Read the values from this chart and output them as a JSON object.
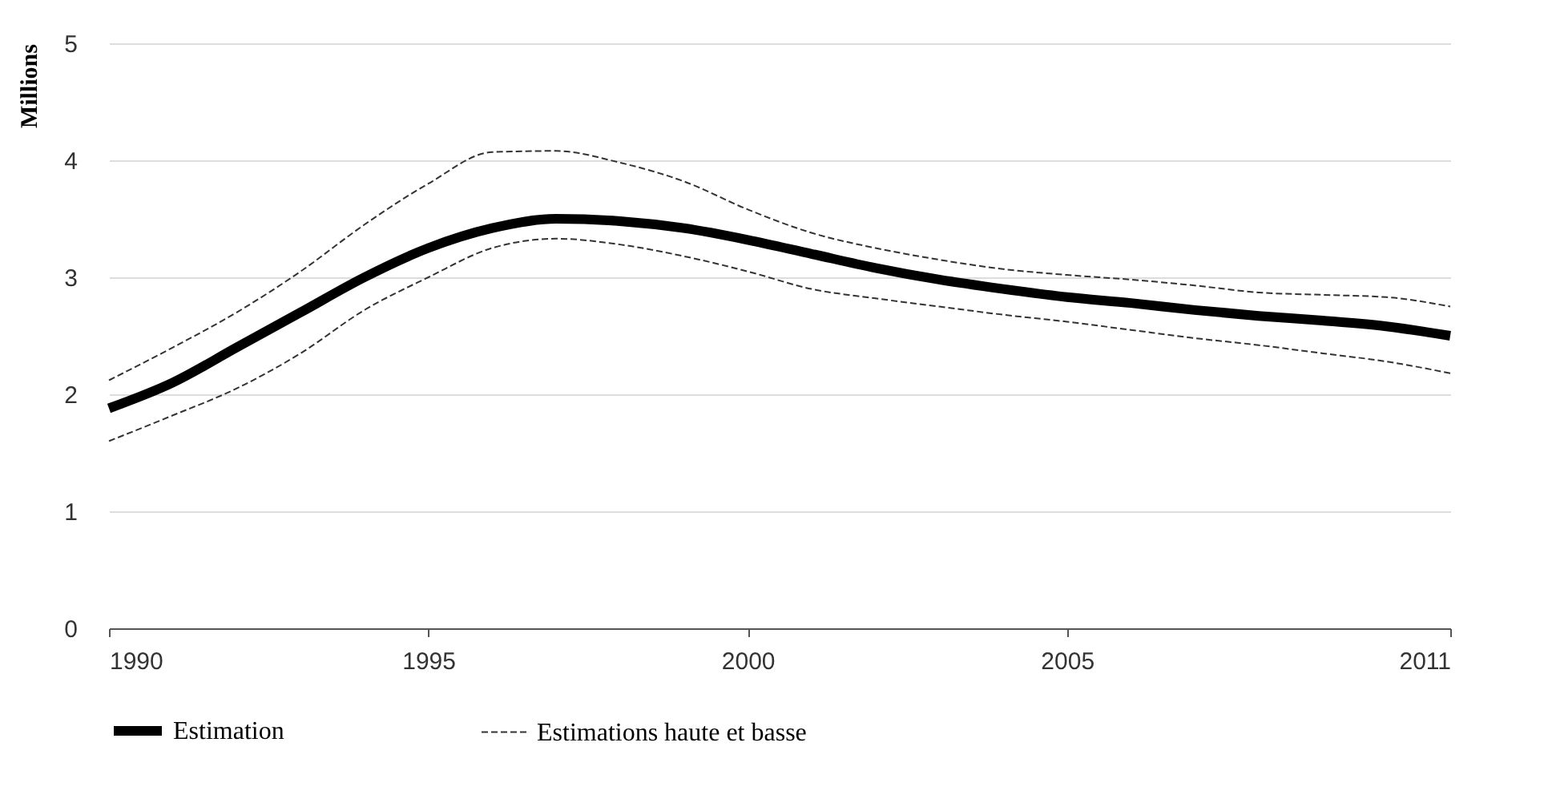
{
  "chart_data": {
    "type": "line",
    "ylabel": "Millions",
    "x": [
      1990,
      1991,
      1992,
      1993,
      1994,
      1995,
      1996,
      1997,
      1998,
      1999,
      2000,
      2001,
      2002,
      2003,
      2004,
      2005,
      2006,
      2007,
      2008,
      2009,
      2010,
      2011
    ],
    "series": [
      {
        "name": "Estimation",
        "color": "#000000",
        "line_style": "solid",
        "values": [
          1.88,
          2.1,
          2.4,
          2.7,
          3.0,
          3.25,
          3.42,
          3.5,
          3.48,
          3.42,
          3.32,
          3.2,
          3.08,
          2.98,
          2.9,
          2.83,
          2.78,
          2.72,
          2.67,
          2.63,
          2.58,
          2.5
        ]
      },
      {
        "name": "Estimations haute et basse",
        "color": "#333333",
        "line_style": "dashed",
        "values": [
          2.12,
          2.4,
          2.7,
          3.05,
          3.45,
          3.8,
          4.07,
          4.08,
          3.98,
          3.82,
          3.58,
          3.38,
          3.25,
          3.15,
          3.07,
          3.02,
          2.98,
          2.93,
          2.87,
          2.85,
          2.83,
          2.75
        ]
      },
      {
        "color": "#333333",
        "line_style": "dashed",
        "values": [
          1.6,
          1.82,
          2.05,
          2.35,
          2.72,
          3.0,
          3.25,
          3.33,
          3.28,
          3.18,
          3.05,
          2.9,
          2.82,
          2.75,
          2.68,
          2.62,
          2.55,
          2.48,
          2.42,
          2.35,
          2.28,
          2.18
        ]
      }
    ],
    "xlim": [
      1990,
      2011
    ],
    "xticks": [
      1990,
      1995,
      2000,
      2005,
      2011
    ],
    "ylim": [
      0,
      5
    ],
    "yticks": [
      0,
      1,
      2,
      3,
      4,
      5
    ],
    "grid": "y",
    "legend": "bottom",
    "marker": "none"
  }
}
